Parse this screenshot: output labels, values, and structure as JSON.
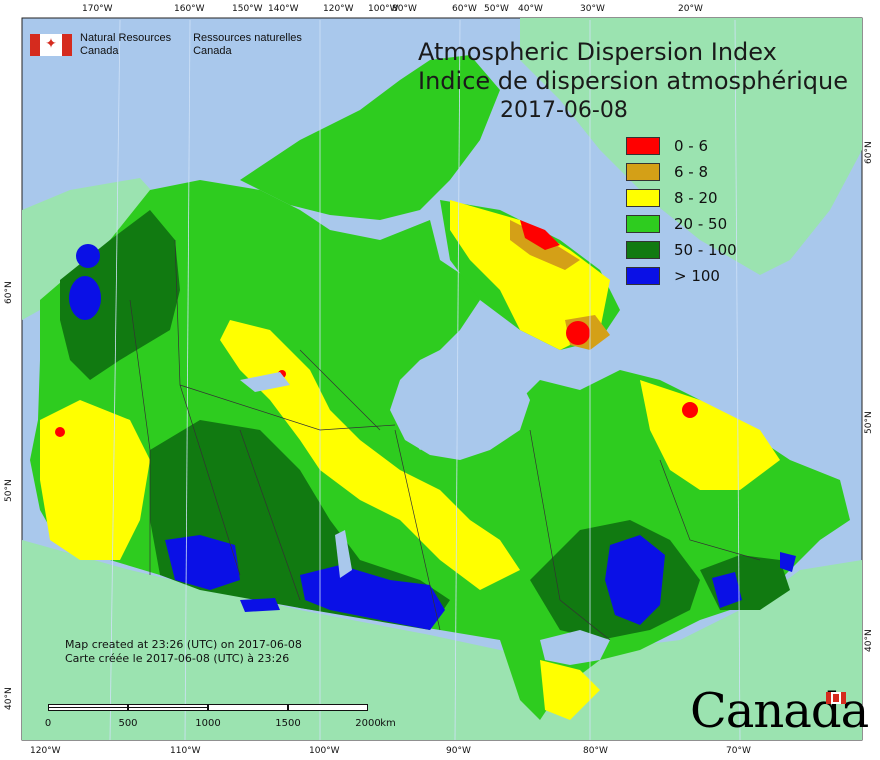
{
  "agency": {
    "en_line1": "Natural Resources",
    "en_line2": "Canada",
    "fr_line1": "Ressources naturelles",
    "fr_line2": "Canada"
  },
  "title": {
    "en": "Atmospheric Dispersion Index",
    "fr": "Indice de dispersion atmosphérique",
    "date": "2017-06-08"
  },
  "legend": [
    {
      "label": "0 - 6",
      "color": "#ff0000"
    },
    {
      "label": "6 - 8",
      "color": "#d4a017"
    },
    {
      "label": "8 - 20",
      "color": "#ffff00"
    },
    {
      "label": "20 - 50",
      "color": "#2ecc1f"
    },
    {
      "label": "50 - 100",
      "color": "#117a11"
    },
    {
      "label": "> 100",
      "color": "#0a10e6"
    }
  ],
  "graticule": {
    "top": [
      "170°W",
      "160°W",
      "150°W",
      "140°W",
      "120°W",
      "100°W",
      "80°W",
      "60°W",
      "50°W",
      "40°W",
      "30°W",
      "20°W"
    ],
    "bottom": [
      "120°W",
      "110°W",
      "100°W",
      "90°W",
      "80°W",
      "70°W"
    ],
    "left": [
      "60°N",
      "50°N",
      "40°N"
    ],
    "right": [
      "60°N",
      "50°N",
      "40°N"
    ]
  },
  "footnote": {
    "en": "Map created at 23:26 (UTC) on 2017-06-08",
    "fr": "Carte créée le 2017-06-08 (UTC) à 23:26"
  },
  "scalebar": {
    "ticks": [
      "0",
      "500",
      "1000",
      "1500",
      "2000"
    ],
    "unit": "km"
  },
  "wordmark": "Canada",
  "colors": {
    "ocean": "#a9c8ec",
    "foreign_land": "#9be3b0"
  }
}
